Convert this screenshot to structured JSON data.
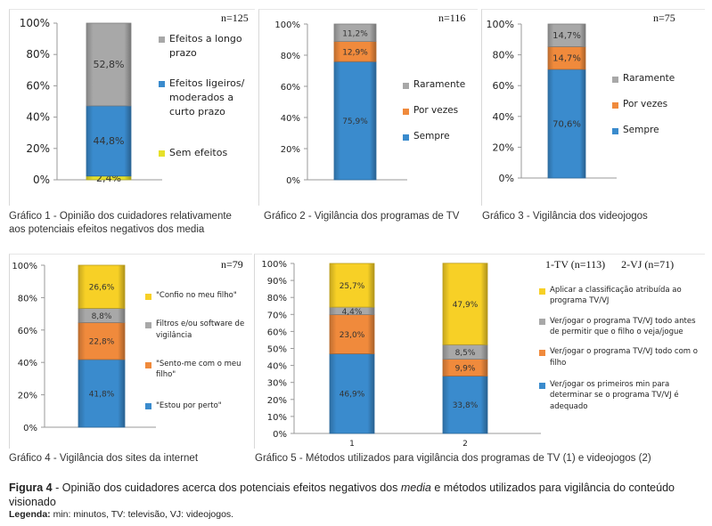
{
  "chart_data": [
    {
      "type": "bar",
      "stacked": true,
      "id": "g1",
      "title": "Gráfico 1 - Opinião dos cuidadores relativamente aos potenciais efeitos negativos dos media",
      "n_label": "n=125",
      "yticks": [
        "0%",
        "20%",
        "40%",
        "60%",
        "80%",
        "100%"
      ],
      "ylim": [
        0,
        100
      ],
      "categories": [
        ""
      ],
      "series": [
        {
          "name": "Sem efeitos",
          "values": [
            2.4
          ],
          "labels": [
            "2,4%"
          ],
          "color": "#e6e02a"
        },
        {
          "name": "Efeitos ligeiros/ moderados a curto prazo",
          "values": [
            44.8
          ],
          "labels": [
            "44,8%"
          ],
          "color": "#3a8bcd"
        },
        {
          "name": "Efeitos a longo prazo",
          "values": [
            52.8
          ],
          "labels": [
            "52,8%"
          ],
          "color": "#a8a8a8"
        }
      ]
    },
    {
      "type": "bar",
      "stacked": true,
      "id": "g2",
      "title": "Gráfico 2 - Vigilância dos programas de TV",
      "n_label": "n=116",
      "yticks": [
        "0%",
        "20%",
        "40%",
        "60%",
        "80%",
        "100%"
      ],
      "ylim": [
        0,
        100
      ],
      "categories": [
        ""
      ],
      "series": [
        {
          "name": "Sempre",
          "values": [
            75.9
          ],
          "labels": [
            "75,9%"
          ],
          "color": "#3a8bcd"
        },
        {
          "name": "Por vezes",
          "values": [
            12.9
          ],
          "labels": [
            "12,9%"
          ],
          "color": "#f08a3c"
        },
        {
          "name": "Raramente",
          "values": [
            11.2
          ],
          "labels": [
            "11,2%"
          ],
          "color": "#a8a8a8"
        }
      ]
    },
    {
      "type": "bar",
      "stacked": true,
      "id": "g3",
      "title": "Gráfico 3 - Vigilância dos videojogos",
      "n_label": "n=75",
      "yticks": [
        "0%",
        "20%",
        "40%",
        "60%",
        "80%",
        "100%"
      ],
      "ylim": [
        0,
        100
      ],
      "categories": [
        ""
      ],
      "series": [
        {
          "name": "Sempre",
          "values": [
            70.6
          ],
          "labels": [
            "70,6%"
          ],
          "color": "#3a8bcd"
        },
        {
          "name": "Por vezes",
          "values": [
            14.7
          ],
          "labels": [
            "14,7%"
          ],
          "color": "#f08a3c"
        },
        {
          "name": "Raramente",
          "values": [
            14.7
          ],
          "labels": [
            "14,7%"
          ],
          "color": "#a8a8a8"
        }
      ]
    },
    {
      "type": "bar",
      "stacked": true,
      "id": "g4",
      "title": "Gráfico 4 - Vigilância dos sites da internet",
      "n_label": "n=79",
      "yticks": [
        "0%",
        "20%",
        "40%",
        "60%",
        "80%",
        "100%"
      ],
      "ylim": [
        0,
        100
      ],
      "categories": [
        ""
      ],
      "series": [
        {
          "name": "\"Estou por perto\"",
          "values": [
            41.8
          ],
          "labels": [
            "41,8%"
          ],
          "color": "#3a8bcd"
        },
        {
          "name": "\"Sento-me com o meu filho\"",
          "values": [
            22.8
          ],
          "labels": [
            "22,8%"
          ],
          "color": "#f08a3c"
        },
        {
          "name": "Filtros e/ou software de vigilância",
          "values": [
            8.8
          ],
          "labels": [
            "8,8%"
          ],
          "color": "#a8a8a8"
        },
        {
          "name": "\"Confio no meu filho\"",
          "values": [
            26.6
          ],
          "labels": [
            "26,6%"
          ],
          "color": "#f7d026"
        }
      ]
    },
    {
      "type": "bar",
      "stacked": true,
      "id": "g5",
      "title": "Gráfico 5 - Métodos utilizados para vigilância dos programas de TV (1) e videojogos (2)",
      "n_label": "1-TV (n=113)      2-VJ (n=71)",
      "yticks": [
        "0%",
        "10%",
        "20%",
        "30%",
        "40%",
        "50%",
        "60%",
        "70%",
        "80%",
        "90%",
        "100%"
      ],
      "ylim": [
        0,
        100
      ],
      "categories": [
        "1",
        "2"
      ],
      "series": [
        {
          "name": "Ver/jogar os primeiros min para determinar se o programa TV/VJ é adequado",
          "values": [
            46.9,
            33.8
          ],
          "labels": [
            "46,9%",
            "33,8%"
          ],
          "color": "#3a8bcd"
        },
        {
          "name": "Ver/jogar o programa TV/VJ todo com o filho",
          "values": [
            23.0,
            9.9
          ],
          "labels": [
            "23,0%",
            "9,9%"
          ],
          "color": "#f08a3c"
        },
        {
          "name": "Ver/jogar o programa TV/VJ todo antes de permitir que o filho o veja/jogue",
          "values": [
            4.4,
            8.5
          ],
          "labels": [
            "4,4%",
            "8,5%"
          ],
          "color": "#a8a8a8"
        },
        {
          "name": "Aplicar a classificação atribuída ao programa TV/VJ",
          "values": [
            25.7,
            47.9
          ],
          "labels": [
            "25,7%",
            "47,9%"
          ],
          "color": "#f7d026"
        }
      ]
    }
  ],
  "figure": {
    "caption_bold": "Figura 4",
    "caption_text": " - Opinião dos cuidadores acerca dos potenciais efeitos negativos dos ",
    "caption_italic": "media",
    "caption_text2": " e métodos utilizados para vigilância do conteúdo visionado",
    "legend_bold": "Legenda:",
    "legend_text": " min: minutos, TV: televisão, VJ: videojogos."
  }
}
